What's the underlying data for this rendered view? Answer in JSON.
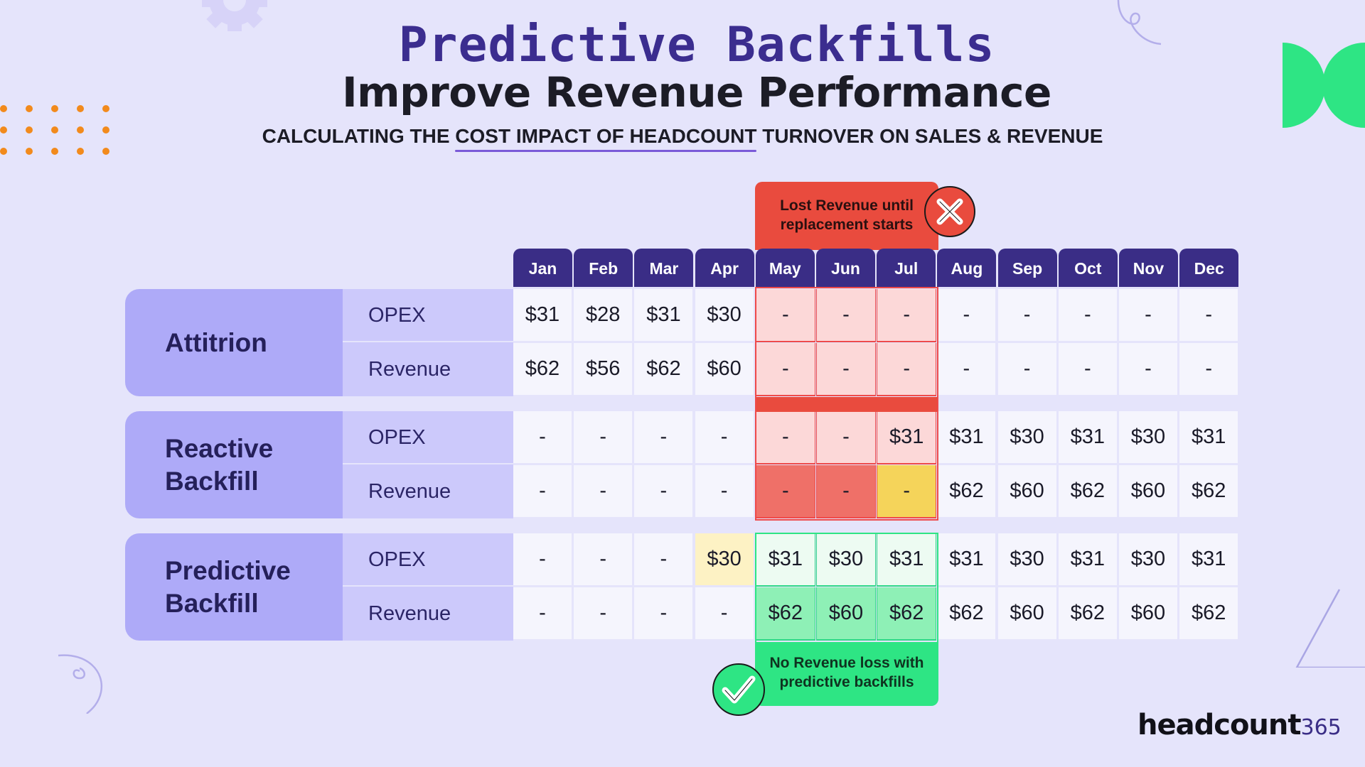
{
  "header": {
    "title": "Predictive Backfills",
    "headline": "Improve Revenue Performance",
    "subtitle_before": "CALCULATING THE ",
    "subtitle_highlight": "COST IMPACT OF HEADCOUNT",
    "subtitle_after": " TURNOVER ON SALES & REVENUE"
  },
  "callouts": {
    "lost_revenue_line1": "Lost Revenue until",
    "lost_revenue_line2": "replacement starts",
    "no_loss_line1": "No Revenue loss with",
    "no_loss_line2": "predictive backfills",
    "lost_icon": "x-circle-icon",
    "no_loss_icon": "check-circle-icon"
  },
  "months": [
    "Jan",
    "Feb",
    "Mar",
    "Apr",
    "May",
    "Jun",
    "Jul",
    "Aug",
    "Sep",
    "Oct",
    "Nov",
    "Dec"
  ],
  "groups": [
    {
      "label_line1": "Attitrion",
      "label_line2": "",
      "rows": [
        {
          "metric": "OPEX",
          "values": [
            "$31",
            "$28",
            "$31",
            "$30",
            "-",
            "-",
            "-",
            "-",
            "-",
            "-",
            "-",
            "-"
          ]
        },
        {
          "metric": "Revenue",
          "values": [
            "$62",
            "$56",
            "$62",
            "$60",
            "-",
            "-",
            "-",
            "-",
            "-",
            "-",
            "-",
            "-"
          ]
        }
      ]
    },
    {
      "label_line1": "Reactive",
      "label_line2": "Backfill",
      "rows": [
        {
          "metric": "OPEX",
          "values": [
            "-",
            "-",
            "-",
            "-",
            "-",
            "-",
            "$31",
            "$31",
            "$30",
            "$31",
            "$30",
            "$31"
          ]
        },
        {
          "metric": "Revenue",
          "values": [
            "-",
            "-",
            "-",
            "-",
            "-",
            "-",
            "-",
            "$62",
            "$60",
            "$62",
            "$60",
            "$62"
          ]
        }
      ]
    },
    {
      "label_line1": "Predictive",
      "label_line2": "Backfill",
      "rows": [
        {
          "metric": "OPEX",
          "values": [
            "-",
            "-",
            "-",
            "$30",
            "$31",
            "$30",
            "$31",
            "$31",
            "$30",
            "$31",
            "$30",
            "$31"
          ]
        },
        {
          "metric": "Revenue",
          "values": [
            "-",
            "-",
            "-",
            "-",
            "$62",
            "$60",
            "$62",
            "$62",
            "$60",
            "$62",
            "$60",
            "$62"
          ]
        }
      ]
    }
  ],
  "colors": {
    "background": "#e5e4fb",
    "month_header": "#3a2d86",
    "lost_highlight": "#e94b3e",
    "light_loss": "#fcd8d8",
    "loss": "#ef7068",
    "transition": "#f5d45a",
    "predictive_start": "#fdf2c4",
    "gain": "#8ef0b6",
    "gain_callout": "#2ee584"
  },
  "logo": {
    "word": "headcount",
    "number": "365"
  }
}
